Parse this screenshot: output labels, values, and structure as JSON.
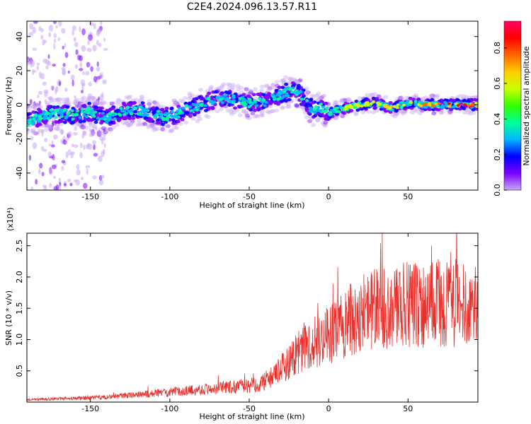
{
  "title": "C2E4.2024.096.13.57.R11",
  "colors": {
    "snr_line": "#e8302c",
    "axis": "#000000",
    "colorbar_stops": [
      "#c9a6f5",
      "#7a00ff",
      "#0000ff",
      "#00b8ff",
      "#00ff99",
      "#33ff00",
      "#ccff00",
      "#ffcc00",
      "#ff6600",
      "#ff0000",
      "#ff0066"
    ]
  },
  "chart_data": [
    {
      "type": "heatmap",
      "name": "spectrogram",
      "xlabel": "Height of straight line (km)",
      "ylabel": "Frequency (Hz)",
      "xlim": [
        -190,
        94
      ],
      "ylim": [
        -50,
        49
      ],
      "xticks": [
        -150,
        -100,
        -50,
        0,
        50
      ],
      "yticks": [
        -40,
        -20,
        0,
        20,
        40
      ],
      "colorbar": {
        "label": "Normalized spectral amplitude",
        "range": [
          0,
          0.95
        ],
        "ticks": [
          "0.0",
          "0.2",
          "0.4",
          "0.6",
          "0.8"
        ]
      },
      "ridge": {
        "x": [
          -190,
          -175,
          -160,
          -150,
          -140,
          -130,
          -120,
          -110,
          -100,
          -90,
          -80,
          -70,
          -60,
          -50,
          -40,
          -30,
          -25,
          -20,
          -15,
          -10,
          -5,
          0,
          5,
          10,
          20,
          30,
          40,
          50,
          60,
          70,
          80,
          90
        ],
        "y": [
          -10,
          -5,
          -6,
          -4,
          -8,
          -4,
          -3,
          -6,
          -7,
          -3,
          0,
          4,
          3,
          1,
          2,
          6,
          8,
          8,
          3,
          -3,
          -2,
          -5,
          -3,
          -2,
          0,
          1,
          -2,
          1,
          0,
          0,
          0,
          0
        ]
      }
    },
    {
      "type": "line",
      "name": "snr",
      "xlabel": "Height of straight line (km)",
      "ylabel": "SNR (10 * v/v)",
      "y_multiplier": "(x10⁴)",
      "xlim": [
        -190,
        94
      ],
      "ylim": [
        0,
        2.7
      ],
      "xticks": [
        -150,
        -100,
        -50,
        0,
        50
      ],
      "yticks": [
        "0.5",
        "1.0",
        "1.5",
        "2.0",
        "2.5"
      ],
      "envelope": {
        "x": [
          -190,
          -160,
          -140,
          -120,
          -100,
          -80,
          -60,
          -45,
          -35,
          -25,
          -15,
          -5,
          5,
          15,
          25,
          35,
          50,
          65,
          80,
          94
        ],
        "y": [
          0.04,
          0.06,
          0.08,
          0.12,
          0.16,
          0.2,
          0.24,
          0.28,
          0.4,
          0.65,
          0.9,
          1.0,
          1.15,
          1.35,
          1.45,
          1.5,
          1.55,
          1.55,
          1.6,
          1.55
        ]
      }
    }
  ]
}
